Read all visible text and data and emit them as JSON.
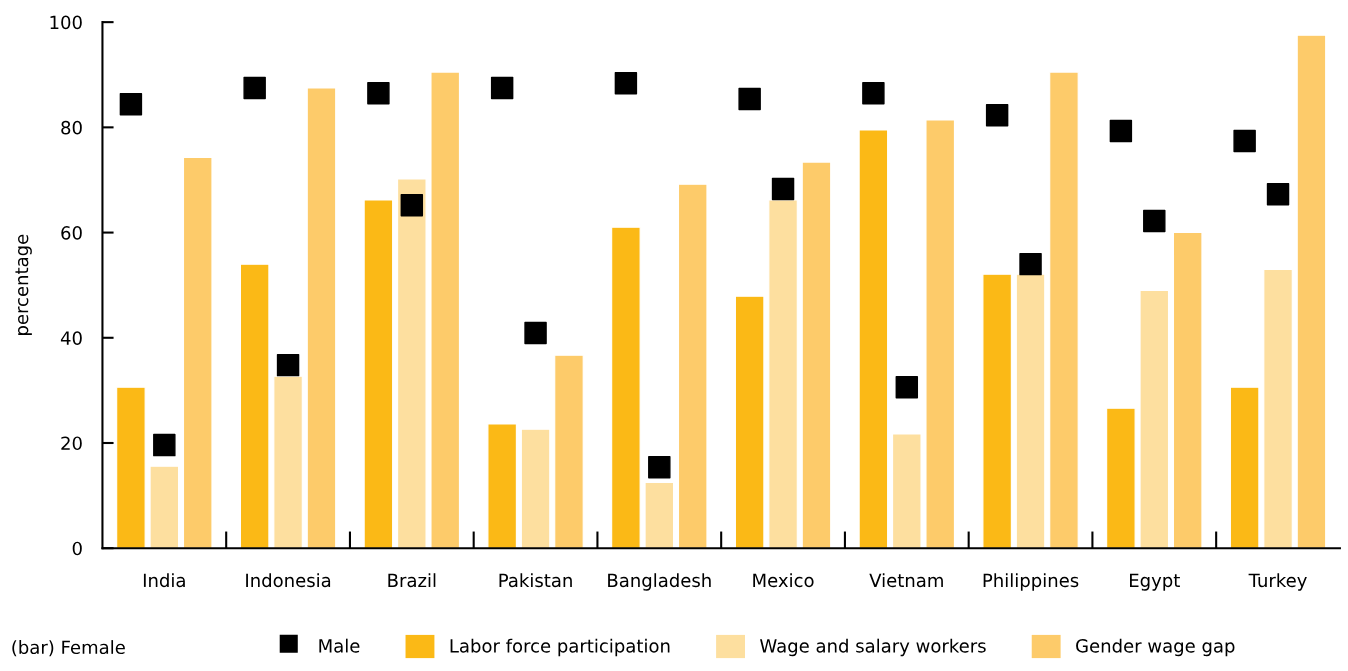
{
  "chart_data": {
    "type": "bar",
    "ylabel": "percentage",
    "legend_title": "(bar) Female",
    "categories": [
      "India",
      "Indonesia",
      "Brazil",
      "Pakistan",
      "Bangladesh",
      "Mexico",
      "Vietnam",
      "Philippines",
      "Egypt",
      "Turkey"
    ],
    "series": [
      {
        "name": "Labor force participation",
        "color": "#fbb916",
        "values": [
          30.6,
          54,
          66.2,
          23.6,
          61,
          47.9,
          79.5,
          52.1,
          26.6,
          30.6
        ]
      },
      {
        "name": "Wage and salary workers",
        "color": "#fddf9f",
        "values": [
          15.6,
          32.7,
          70.2,
          22.6,
          12.5,
          66.2,
          21.7,
          52.1,
          49,
          53
        ]
      },
      {
        "name": "Gender wage gap",
        "color": "#fdcb6a",
        "values": [
          74.3,
          87.5,
          90.5,
          36.7,
          69.2,
          73.4,
          81.4,
          90.5,
          60,
          97.5
        ]
      },
      {
        "type": "scatter",
        "name": "Male",
        "color": "#000000",
        "marker": "square",
        "values": [
          84.4,
          87.5,
          86.5,
          87.5,
          88.4,
          85.4,
          86.5,
          82.3,
          79.3,
          77.4
        ]
      },
      {
        "type": "scatter",
        "color": "#000000",
        "marker": "square",
        "values": [
          19.6,
          34.8,
          65.2,
          40.9,
          15.4,
          68.3,
          30.6,
          54,
          62.2,
          67.3
        ]
      }
    ],
    "ylim": [
      0,
      100
    ],
    "yticks": [
      0,
      20,
      40,
      60,
      80,
      100
    ],
    "grid": false,
    "legend": "bottom"
  }
}
